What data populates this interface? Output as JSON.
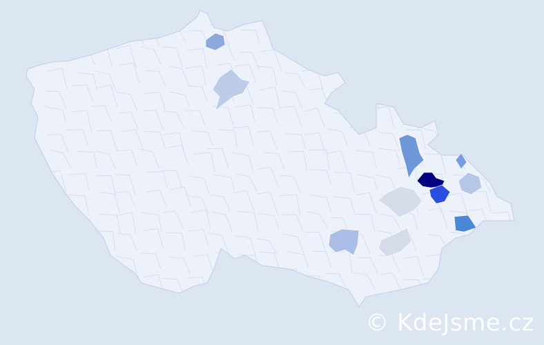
{
  "watermark": {
    "text": "© KdeJsme.cz"
  },
  "colors": {
    "background": "#dce5f2",
    "land": "#edf1fa",
    "border": "#c4cde6"
  },
  "highlighted_districts": [
    {
      "fill": "#8ea8dc"
    },
    {
      "fill": "#bccbe8"
    },
    {
      "fill": "#6d97d8"
    },
    {
      "fill": "#000080"
    },
    {
      "fill": "#2a4fe0"
    },
    {
      "fill": "#7a9be0"
    },
    {
      "fill": "#b6c6e6"
    },
    {
      "fill": "#4a87d4"
    },
    {
      "fill": "#d6dcea"
    },
    {
      "fill": "#a9bde6"
    },
    {
      "fill": "#d5dbe8"
    }
  ]
}
